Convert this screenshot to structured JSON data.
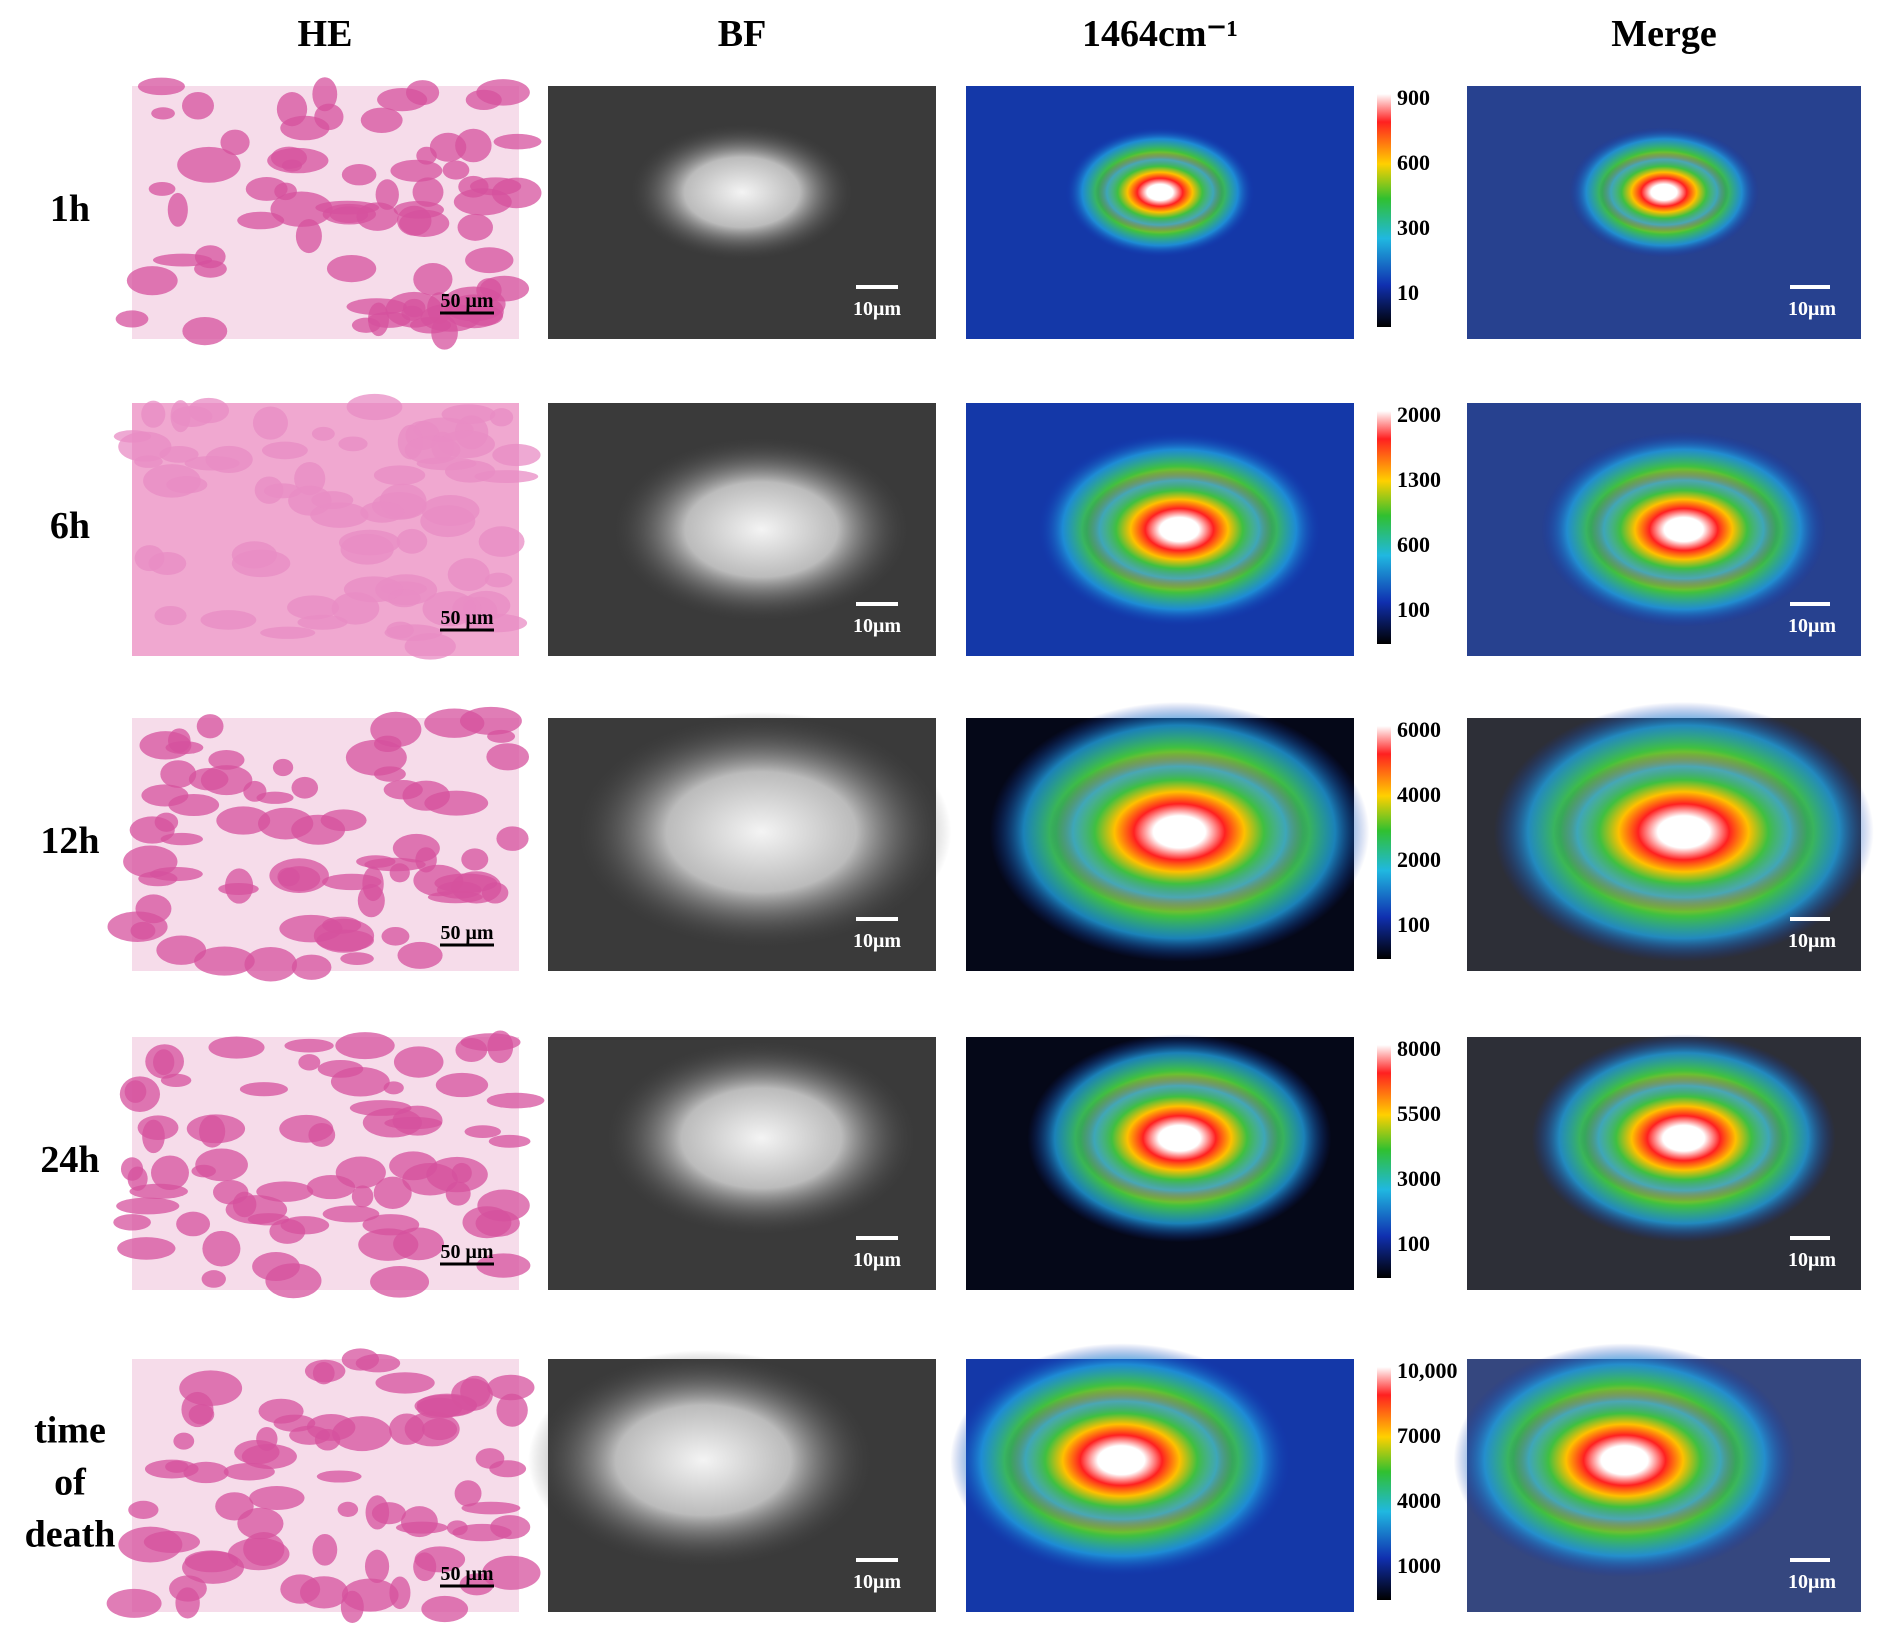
{
  "columns": [
    "HE",
    "BF",
    "1464cm⁻¹",
    "Merge"
  ],
  "scale_labels": {
    "he": "50 μm",
    "bf": "10μm",
    "merge": "10μm"
  },
  "rows": [
    {
      "label": "1h",
      "colorbar_ticks": [
        "900",
        "600",
        "300",
        "10"
      ]
    },
    {
      "label": "6h",
      "colorbar_ticks": [
        "2000",
        "1300",
        "600",
        "100"
      ]
    },
    {
      "label": "12h",
      "colorbar_ticks": [
        "6000",
        "4000",
        "2000",
        "100"
      ]
    },
    {
      "label": "24h",
      "colorbar_ticks": [
        "8000",
        "5500",
        "3000",
        "100"
      ]
    },
    {
      "label": "time of death",
      "colorbar_ticks": [
        "10,000",
        "7000",
        "4000",
        "1000"
      ]
    }
  ]
}
